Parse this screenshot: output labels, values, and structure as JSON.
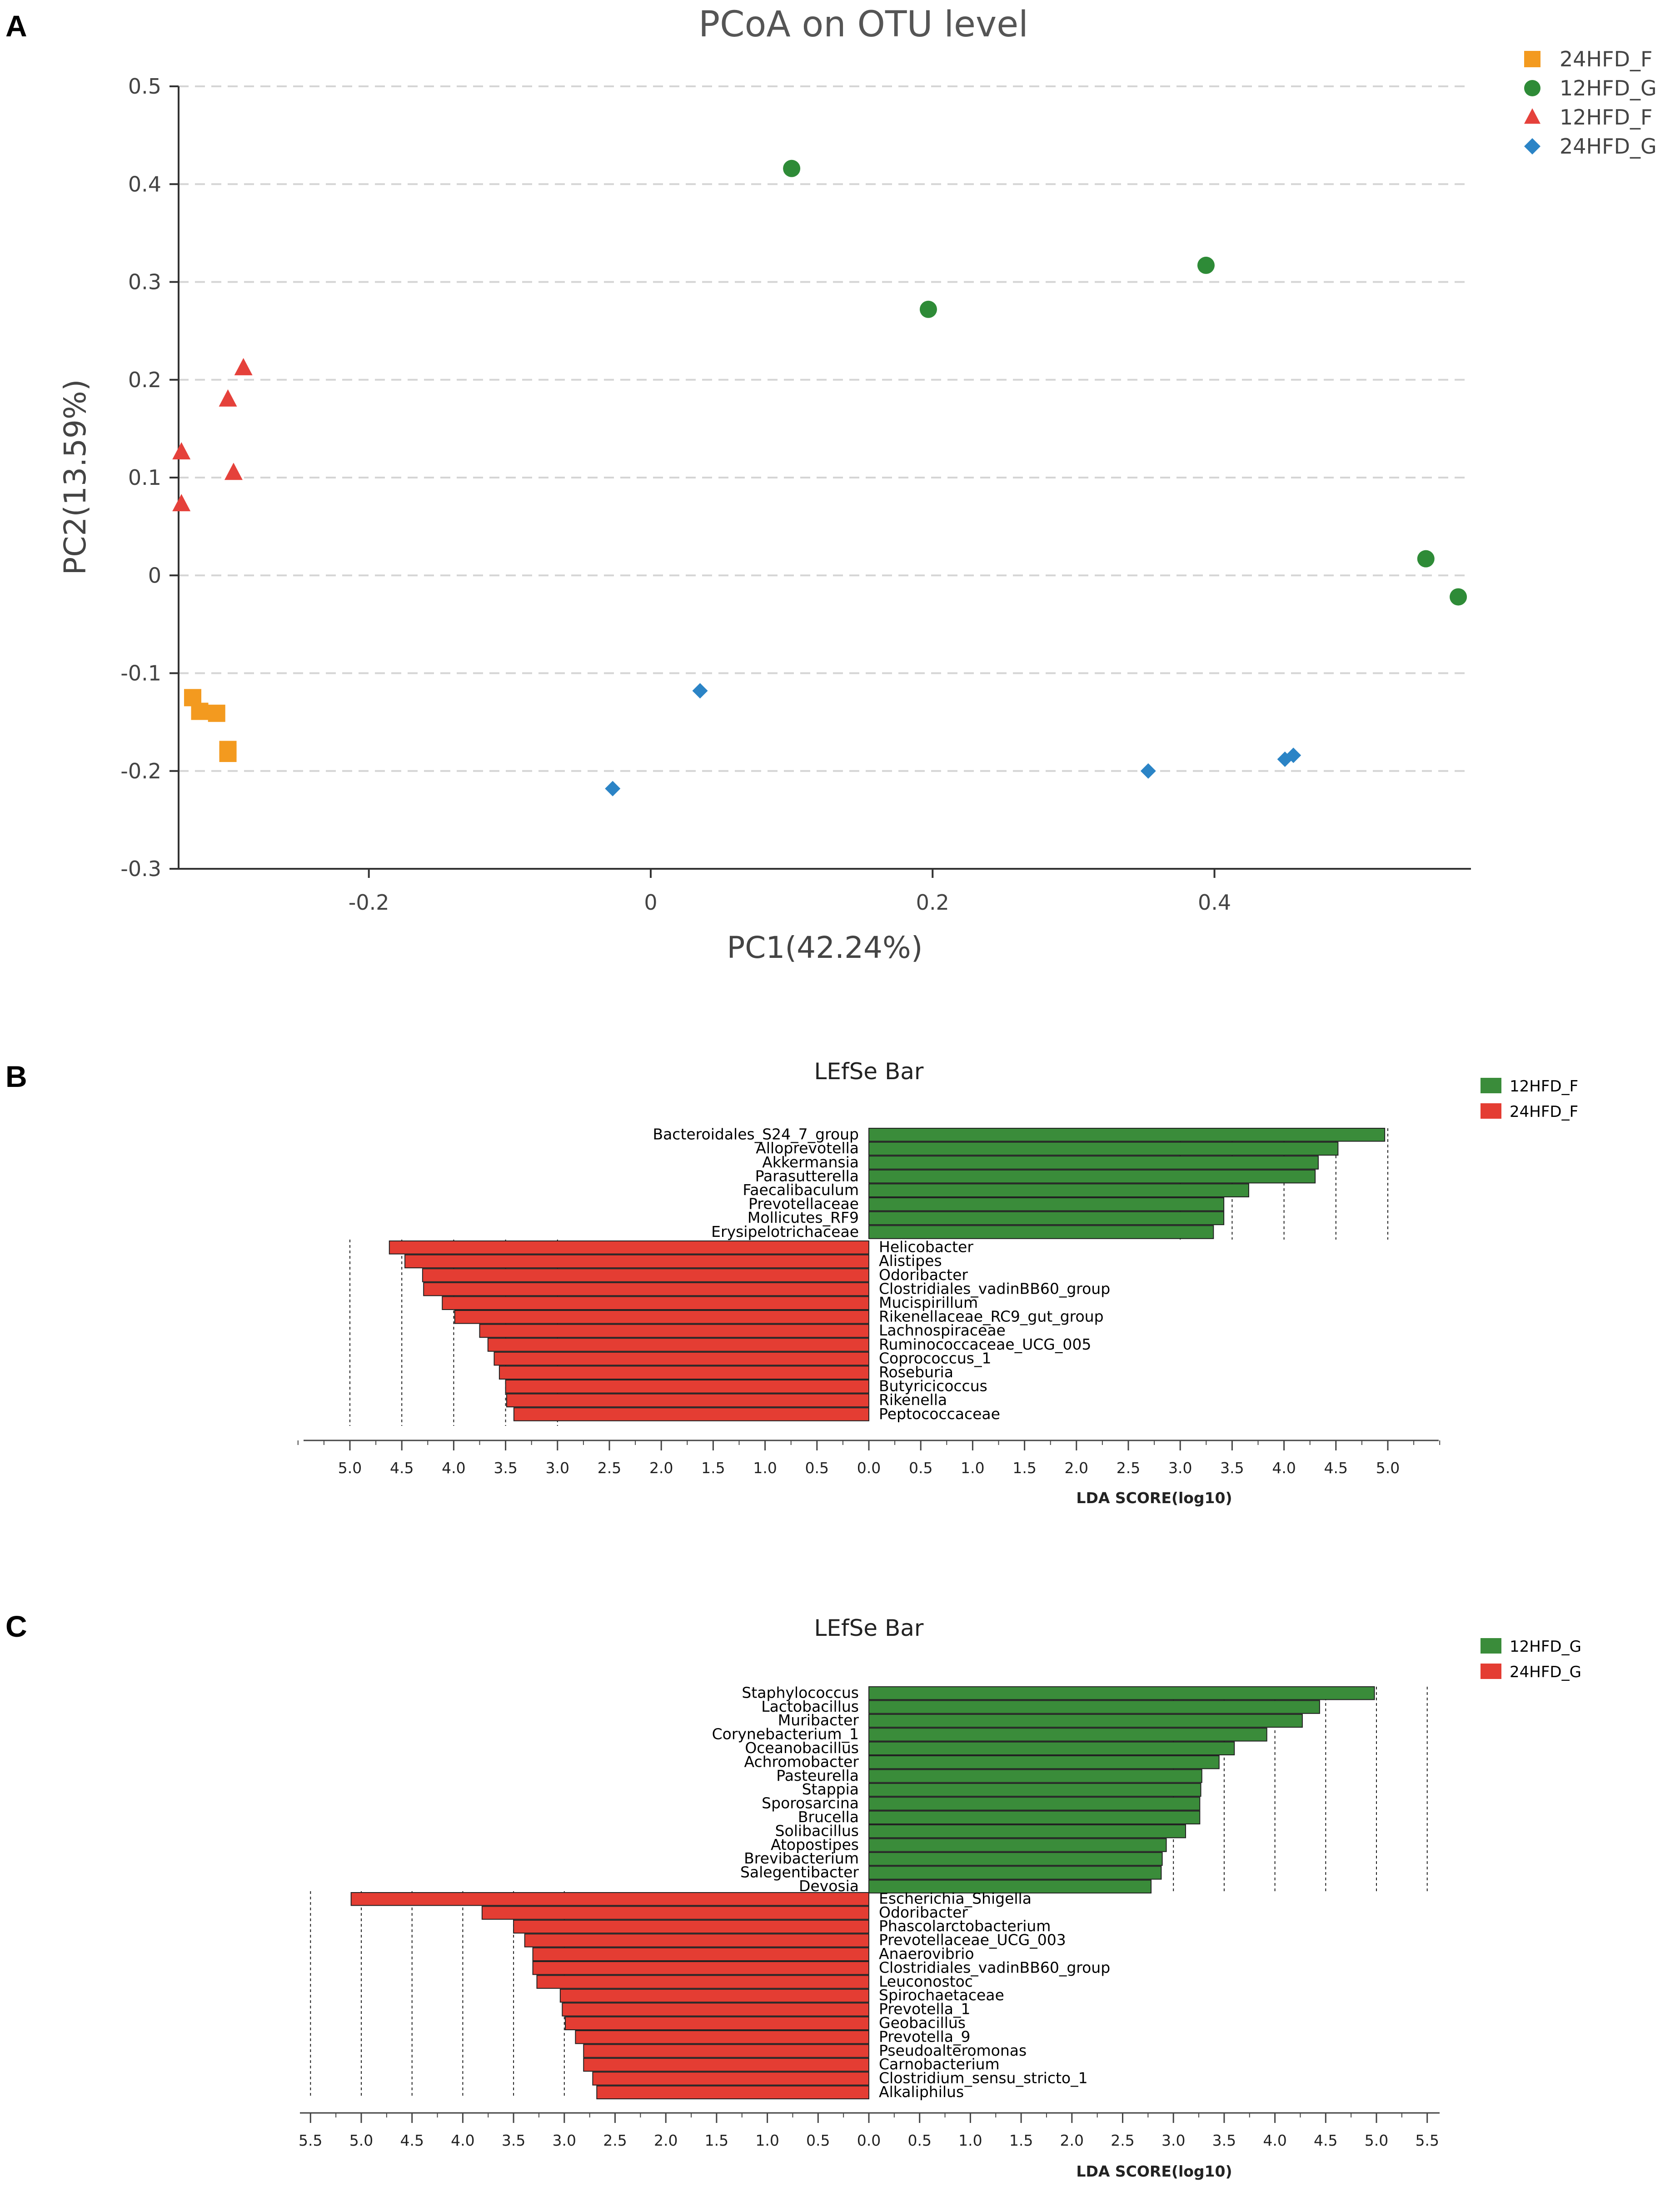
{
  "chart_data": [
    {
      "panel": "A",
      "type": "scatter",
      "title": "PCoA on OTU level",
      "xlabel": "PC1(42.24%)",
      "ylabel": "PC2(13.59%)",
      "xlim": [
        -0.335,
        0.582
      ],
      "ylim": [
        -0.3,
        0.5
      ],
      "xticks": [
        -0.2,
        0,
        0.2,
        0.4
      ],
      "xtick_labels": [
        "-0.2",
        "0",
        "0.2",
        "0.4"
      ],
      "yticks": [
        -0.3,
        -0.2,
        -0.1,
        0,
        0.1,
        0.2,
        0.3,
        0.4,
        0.5
      ],
      "ytick_labels": [
        "-0.3",
        "-0.2",
        "-0.1",
        "0",
        "0.1",
        "0.2",
        "0.3",
        "0.4",
        "0.5"
      ],
      "grid": "horizontal dashed",
      "legend_position": "top-right outside",
      "series": [
        {
          "name": "24HFD_F",
          "marker": "square",
          "color": "#f39a1f",
          "points": [
            [
              -0.325,
              -0.125
            ],
            [
              -0.32,
              -0.139
            ],
            [
              -0.308,
              -0.141
            ],
            [
              -0.3,
              -0.178
            ],
            [
              -0.3,
              -0.182
            ]
          ]
        },
        {
          "name": "12HFD_G",
          "marker": "circle",
          "color": "#2e8b37",
          "points": [
            [
              0.1,
              0.416
            ],
            [
              0.197,
              0.272
            ],
            [
              0.394,
              0.317
            ],
            [
              0.55,
              0.017
            ],
            [
              0.573,
              -0.022
            ]
          ]
        },
        {
          "name": "12HFD_F",
          "marker": "triangle",
          "color": "#e5413b",
          "points": [
            [
              -0.333,
              0.126
            ],
            [
              -0.333,
              0.073
            ],
            [
              -0.3,
              0.18
            ],
            [
              -0.289,
              0.212
            ],
            [
              -0.296,
              0.105
            ]
          ]
        },
        {
          "name": "24HFD_G",
          "marker": "diamond",
          "color": "#2b84c6",
          "points": [
            [
              0.035,
              -0.118
            ],
            [
              -0.027,
              -0.218
            ],
            [
              0.353,
              -0.2
            ],
            [
              0.45,
              -0.188
            ],
            [
              0.456,
              -0.184
            ]
          ]
        }
      ]
    },
    {
      "panel": "B",
      "type": "bar",
      "title": "LEfSe Bar",
      "xlabel": "LDA SCORE(log10)",
      "xmax": 5.5,
      "xtick_values": [
        5.0,
        4.5,
        4.0,
        3.5,
        3.0,
        2.5,
        2.0,
        1.5,
        1.0,
        0.5,
        0.0,
        0.5,
        1.0,
        1.5,
        2.0,
        2.5,
        3.0,
        3.5,
        4.0,
        4.5,
        5.0
      ],
      "xtick_labels": [
        "5.0",
        "4.5",
        "4.0",
        "3.5",
        "3.0",
        "2.5",
        "2.0",
        "1.5",
        "1.0",
        "0.5",
        "0.0",
        "0.5",
        "1.0",
        "1.5",
        "2.0",
        "2.5",
        "3.0",
        "3.5",
        "4.0",
        "4.5",
        "5.0"
      ],
      "guides": [
        3.0,
        3.5,
        4.0,
        4.5,
        5.0
      ],
      "legend_position": "top-right",
      "series": [
        {
          "name": "12HFD_F",
          "color": "#3a8c3a",
          "direction": "right",
          "labels": [
            "Bacteroidales_S24_7_group",
            "Alloprevotella",
            "Akkermansia",
            "Parasutterella",
            "Faecalibaculum",
            "Prevotellaceae",
            "Mollicutes_RF9",
            "Erysipelotrichaceae"
          ],
          "values": [
            4.97,
            4.52,
            4.33,
            4.3,
            3.66,
            3.42,
            3.42,
            3.32
          ]
        },
        {
          "name": "24HFD_F",
          "color": "#e43d33",
          "direction": "left",
          "labels": [
            "Helicobacter",
            "Alistipes",
            "Odoribacter",
            "Clostridiales_vadinBB60_group",
            "Mucispirillum",
            "Rikenellaceae_RC9_gut_group",
            "Lachnospiraceae",
            "Ruminococcaceae_UCG_005",
            "Coprococcus_1",
            "Roseburia",
            "Butyricicoccus",
            "Rikenella",
            "Peptococcaceae"
          ],
          "values": [
            4.62,
            4.47,
            4.3,
            4.29,
            4.11,
            3.99,
            3.75,
            3.67,
            3.61,
            3.56,
            3.5,
            3.49,
            3.42
          ]
        }
      ]
    },
    {
      "panel": "C",
      "type": "bar",
      "title": "LEfSe Bar",
      "xlabel": "LDA SCORE(log10)",
      "xmax": 5.5,
      "xtick_values": [
        5.5,
        5.0,
        4.5,
        4.0,
        3.5,
        3.0,
        2.5,
        2.0,
        1.5,
        1.0,
        0.5,
        0.0,
        0.5,
        1.0,
        1.5,
        2.0,
        2.5,
        3.0,
        3.5,
        4.0,
        4.5,
        5.0,
        5.5
      ],
      "xtick_labels": [
        "5.5",
        "5.0",
        "4.5",
        "4.0",
        "3.5",
        "3.0",
        "2.5",
        "2.0",
        "1.5",
        "1.0",
        "0.5",
        "0.0",
        "0.5",
        "1.0",
        "1.5",
        "2.0",
        "2.5",
        "3.0",
        "3.5",
        "4.0",
        "4.5",
        "5.0",
        "5.5"
      ],
      "guides": [
        3.0,
        3.5,
        4.0,
        4.5,
        5.0,
        5.5
      ],
      "legend_position": "top-right",
      "series": [
        {
          "name": "12HFD_G",
          "color": "#3a8c3a",
          "direction": "right",
          "labels": [
            "Staphylococcus",
            "Lactobacillus",
            "Muribacter",
            "Corynebacterium_1",
            "Oceanobacillus",
            "Achromobacter",
            "Pasteurella",
            "Stappia",
            "Sporosarcina",
            "Brucella",
            "Solibacillus",
            "Atopostipes",
            "Brevibacterium",
            "Salegentibacter",
            "Devosia"
          ],
          "values": [
            4.98,
            4.44,
            4.27,
            3.92,
            3.6,
            3.45,
            3.28,
            3.27,
            3.26,
            3.26,
            3.12,
            2.93,
            2.89,
            2.88,
            2.78
          ]
        },
        {
          "name": "24HFD_G",
          "color": "#e43d33",
          "direction": "left",
          "labels": [
            "Escherichia_Shigella",
            "Odoribacter",
            "Phascolarctobacterium",
            "Prevotellaceae_UCG_003",
            "Anaerovibrio",
            "Clostridiales_vadinBB60_group",
            "Leuconostoc",
            "Spirochaetaceae",
            "Prevotella_1",
            "Geobacillus",
            "Prevotella_9",
            "Pseudoalteromonas",
            "Carnobacterium",
            "Clostridium_sensu_stricto_1",
            "Alkaliphilus"
          ],
          "values": [
            5.1,
            3.81,
            3.5,
            3.39,
            3.31,
            3.31,
            3.27,
            3.04,
            3.02,
            2.99,
            2.89,
            2.81,
            2.81,
            2.72,
            2.68
          ]
        }
      ]
    }
  ],
  "panel_labels": {
    "a": "A",
    "b": "B",
    "c": "C"
  }
}
